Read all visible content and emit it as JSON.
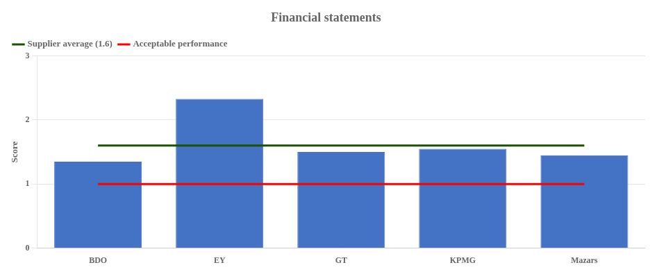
{
  "chart_data": {
    "type": "bar",
    "title": "Financial statements",
    "ylabel": "Score",
    "categories": [
      "BDO",
      "EY",
      "GT",
      "KPMG",
      "Mazars"
    ],
    "values": [
      1.35,
      2.33,
      1.5,
      1.55,
      1.45
    ],
    "color": "#4472C4",
    "ylim": [
      0,
      3
    ],
    "yticks": [
      0,
      1,
      2,
      3
    ],
    "grid": true,
    "legend": "upper left",
    "reference_lines": [
      {
        "name": "Supplier average (1.6)",
        "value": 1.6,
        "color": "#1a5200"
      },
      {
        "name": "Acceptable performance",
        "value": 1.0,
        "color": "#FF0000"
      }
    ]
  }
}
